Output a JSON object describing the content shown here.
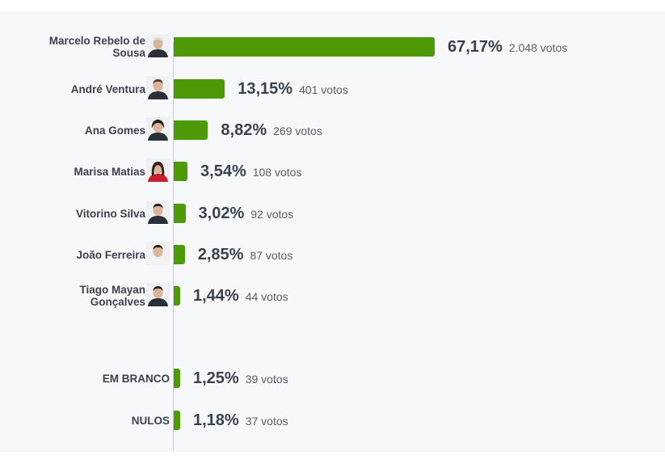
{
  "chart_data": {
    "type": "bar",
    "orientation": "horizontal",
    "xlim": [
      0,
      100
    ],
    "categories": [
      "Marcelo Rebelo de Sousa",
      "André Ventura",
      "Ana Gomes",
      "Marisa Matias",
      "Vitorino Silva",
      "João Ferreira",
      "Tiago Mayan Gonçalves",
      "EM BRANCO",
      "NULOS"
    ],
    "values": [
      67.17,
      13.15,
      8.82,
      3.54,
      3.02,
      2.85,
      1.44,
      1.25,
      1.18
    ],
    "bar_color": "#4e9a06",
    "rows": [
      {
        "name_lines": [
          "Marcelo Rebelo de",
          "Sousa"
        ],
        "pct_label": "67,17%",
        "votes_label": "2.048 votos",
        "value": 67.17,
        "has_photo": true
      },
      {
        "name_lines": [
          "André Ventura"
        ],
        "pct_label": "13,15%",
        "votes_label": "401 votos",
        "value": 13.15,
        "has_photo": true
      },
      {
        "name_lines": [
          "Ana Gomes"
        ],
        "pct_label": "8,82%",
        "votes_label": "269 votos",
        "value": 8.82,
        "has_photo": true
      },
      {
        "name_lines": [
          "Marisa Matias"
        ],
        "pct_label": "3,54%",
        "votes_label": "108 votos",
        "value": 3.54,
        "has_photo": true
      },
      {
        "name_lines": [
          "Vitorino Silva"
        ],
        "pct_label": "3,02%",
        "votes_label": "92 votos",
        "value": 3.02,
        "has_photo": true
      },
      {
        "name_lines": [
          "João Ferreira"
        ],
        "pct_label": "2,85%",
        "votes_label": "87 votos",
        "value": 2.85,
        "has_photo": true
      },
      {
        "name_lines": [
          "Tiago Mayan",
          "Gonçalves"
        ],
        "pct_label": "1,44%",
        "votes_label": "44 votos",
        "value": 1.44,
        "has_photo": true
      },
      {
        "name_lines": [
          "EM BRANCO"
        ],
        "pct_label": "1,25%",
        "votes_label": "39 votos",
        "value": 1.25,
        "has_photo": false
      },
      {
        "name_lines": [
          "NULOS"
        ],
        "pct_label": "1,18%",
        "votes_label": "37 votos",
        "value": 1.18,
        "has_photo": false
      }
    ]
  }
}
